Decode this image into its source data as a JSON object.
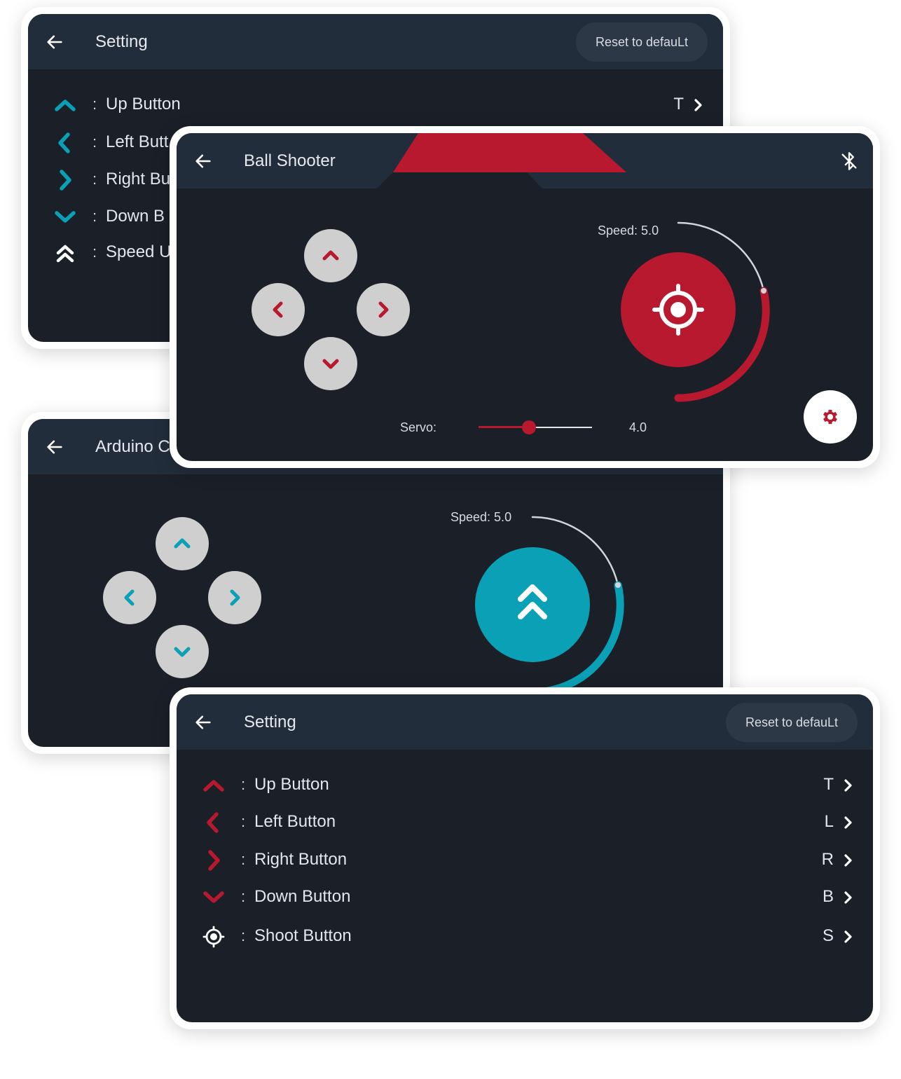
{
  "colors": {
    "teal": "#0aa0b5",
    "red": "#b8192e",
    "screen_bg": "#1a1f28",
    "bar_bg": "#222d3b"
  },
  "setting_top": {
    "back_icon": "arrow-left-icon",
    "title": "Setting",
    "reset_label": "Reset to defauLt",
    "rows": [
      {
        "icon": "chevron-up-icon",
        "colon": ":",
        "label": "Up Button",
        "key": "T"
      },
      {
        "icon": "chevron-left-icon",
        "colon": ":",
        "label": "Left Butt"
      },
      {
        "icon": "chevron-right-icon",
        "colon": ":",
        "label": "Right Bu"
      },
      {
        "icon": "chevron-down-icon",
        "colon": ":",
        "label": "Down B"
      },
      {
        "icon": "double-chevron-up-icon",
        "colon": ":",
        "label": "Speed U"
      }
    ]
  },
  "ball_shooter": {
    "back_icon": "arrow-left-icon",
    "title": "Ball Shooter",
    "bluetooth_icon": "bluetooth-off-icon",
    "speed_label": "Speed: 5.0",
    "speed_fraction": 0.5,
    "shoot_icon": "crosshair-icon",
    "servo_label": "Servo:",
    "servo_value": "4.0",
    "servo_fraction": 0.44,
    "settings_icon": "gear-icon"
  },
  "arduino": {
    "back_icon": "arrow-left-icon",
    "title": "Arduino C",
    "speed_label": "Speed: 5.0",
    "speed_fraction": 0.5,
    "speed_icon": "double-chevron-up-icon"
  },
  "setting_bottom": {
    "back_icon": "arrow-left-icon",
    "title": "Setting",
    "reset_label": "Reset to defauLt",
    "rows": [
      {
        "icon": "chevron-up-icon",
        "colon": ":",
        "label": "Up Button",
        "key": "T"
      },
      {
        "icon": "chevron-left-icon",
        "colon": ":",
        "label": "Left Button",
        "key": "L"
      },
      {
        "icon": "chevron-right-icon",
        "colon": ":",
        "label": "Right Button",
        "key": "R"
      },
      {
        "icon": "chevron-down-icon",
        "colon": ":",
        "label": "Down Button",
        "key": "B"
      },
      {
        "icon": "crosshair-icon",
        "colon": ":",
        "label": "Shoot Button",
        "key": "S"
      }
    ]
  }
}
